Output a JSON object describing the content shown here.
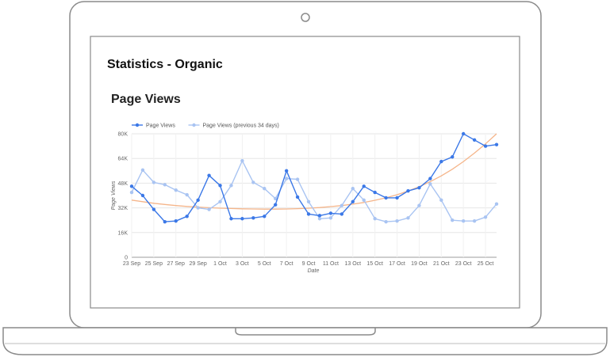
{
  "report": {
    "title": "Statistics - Organic"
  },
  "chart_data": {
    "type": "line",
    "title": "Page Views",
    "xlabel": "Date",
    "ylabel": "Page Views",
    "ylim": [
      0,
      80000
    ],
    "y_ticks": [
      0,
      16000,
      32000,
      48000,
      64000,
      80000
    ],
    "y_tick_labels": [
      "0",
      "16K",
      "32K",
      "48K",
      "64K",
      "80K"
    ],
    "x_tick_labels": [
      "23 Sep",
      "25 Sep",
      "27 Sep",
      "29 Sep",
      "1 Oct",
      "3 Oct",
      "5 Oct",
      "7 Oct",
      "9 Oct",
      "11 Oct",
      "13 Oct",
      "15 Oct",
      "17 Oct",
      "19 Oct",
      "21 Oct",
      "23 Oct",
      "25 Oct"
    ],
    "grid": true,
    "legend_position": "top-left",
    "x": [
      "23 Sep",
      "24 Sep",
      "25 Sep",
      "26 Sep",
      "27 Sep",
      "28 Sep",
      "29 Sep",
      "30 Sep",
      "1 Oct",
      "2 Oct",
      "3 Oct",
      "4 Oct",
      "5 Oct",
      "6 Oct",
      "7 Oct",
      "8 Oct",
      "9 Oct",
      "10 Oct",
      "11 Oct",
      "12 Oct",
      "13 Oct",
      "14 Oct",
      "15 Oct",
      "16 Oct",
      "17 Oct",
      "18 Oct",
      "19 Oct",
      "20 Oct",
      "21 Oct",
      "22 Oct",
      "23 Oct",
      "24 Oct",
      "25 Oct",
      "26 Oct"
    ],
    "series": [
      {
        "name": "Page Views",
        "color": "#3b78e7",
        "values": [
          46000,
          40000,
          31000,
          23000,
          23500,
          26500,
          37000,
          53000,
          46500,
          25000,
          25000,
          25500,
          26500,
          34000,
          56000,
          39000,
          28000,
          27000,
          28500,
          28000,
          36000,
          46000,
          42000,
          38500,
          38500,
          43000,
          45000,
          51000,
          62000,
          65000,
          80000,
          76000,
          72000,
          73000
        ]
      },
      {
        "name": "Page Views (previous 34 days)",
        "color": "#a9c4f2",
        "values": [
          42000,
          56500,
          48500,
          47000,
          43500,
          40500,
          32000,
          31000,
          36000,
          46500,
          62500,
          48500,
          44500,
          38000,
          51000,
          50500,
          36000,
          25000,
          25500,
          33500,
          44500,
          37000,
          25000,
          23000,
          23500,
          25500,
          33500,
          47500,
          37000,
          24000,
          23500,
          23500,
          26000,
          34500
        ]
      },
      {
        "color": "#f5b58a",
        "values": [
          37000,
          36000,
          35000,
          34200,
          33500,
          32900,
          32500,
          32100,
          31800,
          31600,
          31400,
          31300,
          31200,
          31200,
          31300,
          31500,
          31800,
          32200,
          32800,
          33500,
          34400,
          35500,
          36900,
          38500,
          40500,
          42900,
          45700,
          49000,
          52700,
          57000,
          62000,
          67500,
          73500,
          80000
        ]
      }
    ]
  }
}
